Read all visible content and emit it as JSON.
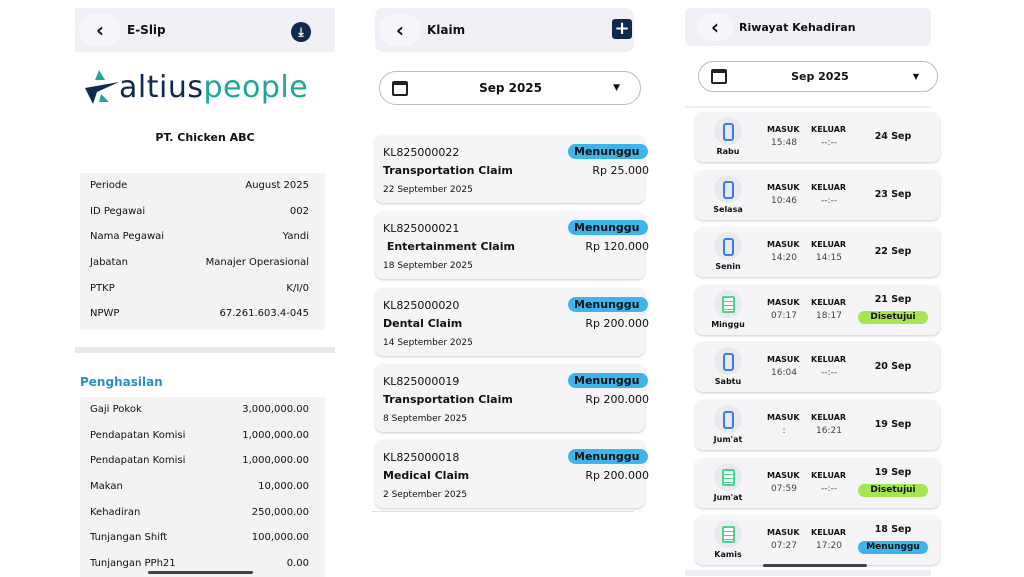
{
  "eslip": {
    "title": "E-Slip",
    "logo_text": [
      "altius",
      "people"
    ],
    "company": "PT. Chicken ABC",
    "info": [
      {
        "label": "Periode",
        "value": "August 2025"
      },
      {
        "label": "ID Pegawai",
        "value": "002"
      },
      {
        "label": "Nama Pegawai",
        "value": "Yandi"
      },
      {
        "label": "Jabatan",
        "value": "Manajer Operasional"
      },
      {
        "label": "PTKP",
        "value": "K/I/0"
      },
      {
        "label": "NPWP",
        "value": "67.261.603.4-045"
      }
    ],
    "income_title": "Penghasilan",
    "income": [
      {
        "label": "Gaji Pokok",
        "value": "3,000,000.00"
      },
      {
        "label": "Pendapatan Komisi",
        "value": "1,000,000.00"
      },
      {
        "label": "Pendapatan Komisi",
        "value": "1,000,000.00"
      },
      {
        "label": "Makan",
        "value": "10,000.00"
      },
      {
        "label": "Kehadiran",
        "value": "250,000.00"
      },
      {
        "label": "Tunjangan Shift",
        "value": "100,000.00"
      },
      {
        "label": "Tunjangan PPh21",
        "value": "0.00"
      }
    ]
  },
  "klaim": {
    "title": "Klaim",
    "month": "Sep 2025",
    "items": [
      {
        "id": "KL825000022",
        "type": "Transportation Claim",
        "amount": "Rp 25.000",
        "date": "22 September 2025",
        "status": "Menunggu"
      },
      {
        "id": "KL825000021",
        "type": " Entertainment Claim",
        "amount": "Rp 120.000",
        "date": "18 September 2025",
        "status": "Menunggu"
      },
      {
        "id": "KL825000020",
        "type": "Dental Claim",
        "amount": "Rp 200.000",
        "date": "14 September 2025",
        "status": "Menunggu"
      },
      {
        "id": "KL825000019",
        "type": "Transportation Claim",
        "amount": "Rp 200.000",
        "date": "8 September 2025",
        "status": "Menunggu"
      },
      {
        "id": "KL825000018",
        "type": "Medical Claim",
        "amount": "Rp 200.000",
        "date": "2 September 2025",
        "status": "Menunggu"
      }
    ]
  },
  "kehadiran": {
    "title": "Riwayat Kehadiran",
    "month": "Sep 2025",
    "in_label": "MASUK",
    "out_label": "KELUAR",
    "items": [
      {
        "icon": "phone",
        "day": "Rabu",
        "in": "15:48",
        "out": "--:--",
        "date": "24 Sep",
        "status": ""
      },
      {
        "icon": "phone",
        "day": "Selasa",
        "in": "10:46",
        "out": "--:--",
        "date": "23 Sep",
        "status": ""
      },
      {
        "icon": "phone",
        "day": "Senin",
        "in": "14:20",
        "out": "14:15",
        "date": "22 Sep",
        "status": ""
      },
      {
        "icon": "clipboard",
        "day": "Minggu",
        "in": "07:17",
        "out": "18:17",
        "date": "21 Sep",
        "status": "Disetujui"
      },
      {
        "icon": "phone",
        "day": "Sabtu",
        "in": "16:04",
        "out": "--:--",
        "date": "20 Sep",
        "status": ""
      },
      {
        "icon": "phone",
        "day": "Jum'at",
        "in": ":",
        "out": "16:21",
        "date": "19 Sep",
        "status": ""
      },
      {
        "icon": "clipboard",
        "day": "Jum'at",
        "in": "07:59",
        "out": "--:--",
        "date": "19 Sep",
        "status": "Disetujui"
      },
      {
        "icon": "clipboard",
        "day": "Kamis",
        "in": "07:27",
        "out": "17:20",
        "date": "18 Sep",
        "status": "Menunggu"
      }
    ]
  },
  "colors": {
    "navy": "#10294f",
    "teal": "#1ba79a",
    "blue": "#2a8fd0",
    "badge_wait": "#3db5ec",
    "badge_ok": "#a6e650",
    "phone": "#3a7bef",
    "clip": "#48d68d"
  }
}
